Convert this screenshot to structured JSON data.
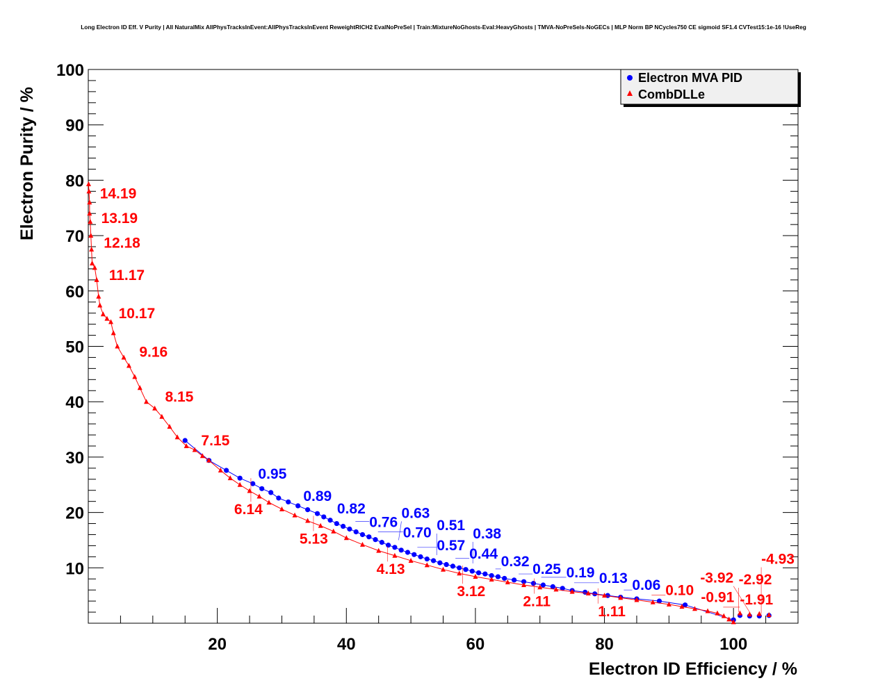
{
  "chart_data": {
    "type": "line",
    "title": "Long Electron ID Eff. V Purity | All NaturalMix AllPhysTracksInEvent:AllPhysTracksInEvent ReweightRICH2 EvalNoPreSel | Train:MixtureNoGhosts-Eval:HeavyGhosts | TMVA-NoPreSels-NoGECs | MLP Norm BP NCycles750 CE sigmoid SF1.4 CVTest15:1e-16 !UseReg",
    "xlabel": "Electron ID Efficiency / %",
    "ylabel": "Electron Purity / %",
    "xlim": [
      0,
      110
    ],
    "ylim": [
      0,
      100
    ],
    "xticks": [
      20,
      40,
      60,
      80,
      100
    ],
    "yticks": [
      10,
      20,
      30,
      40,
      50,
      60,
      70,
      80,
      90,
      100
    ],
    "grid": true,
    "legend_position": "top-right",
    "series": [
      {
        "name": "Electron MVA PID",
        "color": "#0000ff",
        "marker": "circle",
        "points": [
          [
            15,
            33
          ],
          [
            18.7,
            29.4
          ],
          [
            21.4,
            27.6
          ],
          [
            23.5,
            26.2
          ],
          [
            25.5,
            25.2
          ],
          [
            26.9,
            24.3
          ],
          [
            28.3,
            23.6
          ],
          [
            29.5,
            22.6
          ],
          [
            31,
            21.9
          ],
          [
            32.5,
            21.2
          ],
          [
            34,
            20.5
          ],
          [
            35.5,
            19.8
          ],
          [
            36.5,
            19.2
          ],
          [
            37.5,
            18.6
          ],
          [
            38.5,
            18.0
          ],
          [
            39.5,
            17.5
          ],
          [
            40.5,
            17.0
          ],
          [
            41.5,
            16.5
          ],
          [
            42.5,
            16.0
          ],
          [
            43.5,
            15.6
          ],
          [
            44.5,
            15.1
          ],
          [
            45.5,
            14.6
          ],
          [
            46.5,
            14.1
          ],
          [
            47.5,
            13.7
          ],
          [
            48.5,
            13.2
          ],
          [
            49.5,
            12.8
          ],
          [
            50.5,
            12.4
          ],
          [
            51.5,
            12.0
          ],
          [
            52.5,
            11.6
          ],
          [
            53.5,
            11.3
          ],
          [
            54.5,
            10.9
          ],
          [
            55.5,
            10.6
          ],
          [
            56.5,
            10.3
          ],
          [
            57.5,
            10.0
          ],
          [
            58.5,
            9.7
          ],
          [
            59.5,
            9.4
          ],
          [
            60.5,
            9.1
          ],
          [
            61.5,
            8.9
          ],
          [
            62.5,
            8.6
          ],
          [
            63.5,
            8.4
          ],
          [
            64.5,
            8.1
          ],
          [
            66,
            7.8
          ],
          [
            67.5,
            7.5
          ],
          [
            69,
            7.2
          ],
          [
            70.5,
            6.9
          ],
          [
            72,
            6.6
          ],
          [
            73.5,
            6.3
          ],
          [
            75,
            5.9
          ],
          [
            77,
            5.6
          ],
          [
            78.5,
            5.3
          ],
          [
            80.5,
            5.0
          ],
          [
            82.5,
            4.7
          ],
          [
            85,
            4.4
          ],
          [
            88.5,
            4.0
          ],
          [
            92.5,
            3.3
          ],
          [
            100,
            0.6
          ],
          [
            101,
            1.4
          ],
          [
            102.5,
            1.3
          ],
          [
            104,
            1.3
          ],
          [
            105.5,
            1.4
          ]
        ],
        "labels": [
          [
            "0.95",
            25.9,
            27.1
          ],
          [
            "0.89",
            32.9,
            23.1
          ],
          [
            "0.82",
            37.7,
            20.3
          ],
          [
            "0.76",
            41.4,
            18.4
          ],
          [
            "0.70",
            44.9,
            16.5
          ],
          [
            "0.63",
            48.1,
            15.0
          ],
          [
            "0.57",
            51.0,
            13.7
          ],
          [
            "0.51",
            54.0,
            12.3
          ],
          [
            "0.44",
            56.9,
            11.7
          ],
          [
            "0.38",
            59.6,
            10.8
          ],
          [
            "0.32",
            63.1,
            9.8
          ],
          [
            "0.25",
            66.7,
            8.9
          ],
          [
            "0.19",
            70.2,
            8.3
          ],
          [
            "0.13",
            75.3,
            7.3
          ],
          [
            "0.06",
            83.0,
            6.0
          ]
        ]
      },
      {
        "name": "CombDLLe",
        "color": "#ff0000",
        "marker": "triangle",
        "points": [
          [
            0.05,
            79.3
          ],
          [
            0.1,
            78
          ],
          [
            0.2,
            76
          ],
          [
            0.2,
            74
          ],
          [
            0.3,
            72.5
          ],
          [
            0.4,
            70
          ],
          [
            0.5,
            67.5
          ],
          [
            0.6,
            65
          ],
          [
            1.0,
            64.2
          ],
          [
            1.3,
            62
          ],
          [
            1.6,
            59
          ],
          [
            1.8,
            57.4
          ],
          [
            2.3,
            55.8
          ],
          [
            2.9,
            55
          ],
          [
            3.5,
            54.4
          ],
          [
            3.9,
            52.4
          ],
          [
            4.5,
            50
          ],
          [
            5.5,
            48
          ],
          [
            6.3,
            46.5
          ],
          [
            7.2,
            44.5
          ],
          [
            8.0,
            42.5
          ],
          [
            9.0,
            40
          ],
          [
            10.3,
            38.8
          ],
          [
            11.4,
            37.3
          ],
          [
            12.6,
            35.5
          ],
          [
            13.8,
            33.6
          ],
          [
            15.2,
            32
          ],
          [
            16.5,
            31.3
          ],
          [
            17.7,
            30.2
          ],
          [
            18.7,
            29.4
          ],
          [
            20.5,
            27.6
          ],
          [
            22.0,
            26.2
          ],
          [
            23.5,
            25.0
          ],
          [
            25.0,
            23.9
          ],
          [
            26.5,
            22.9
          ],
          [
            28.0,
            21.8
          ],
          [
            30.0,
            20.6
          ],
          [
            32.0,
            19.5
          ],
          [
            34.0,
            18.5
          ],
          [
            36.0,
            17.6
          ],
          [
            38.0,
            16.6
          ],
          [
            40.0,
            15.4
          ],
          [
            42.5,
            14.2
          ],
          [
            45.0,
            13.1
          ],
          [
            47.5,
            12.2
          ],
          [
            50.0,
            11.3
          ],
          [
            52.5,
            10.5
          ],
          [
            55.0,
            9.7
          ],
          [
            57.5,
            9.0
          ],
          [
            60.0,
            8.4
          ],
          [
            62.5,
            7.9
          ],
          [
            65.0,
            7.4
          ],
          [
            67.5,
            6.9
          ],
          [
            70.0,
            6.5
          ],
          [
            72.5,
            6.1
          ],
          [
            75.0,
            5.7
          ],
          [
            77.5,
            5.4
          ],
          [
            80.0,
            5.0
          ],
          [
            82.5,
            4.6
          ],
          [
            85.0,
            4.2
          ],
          [
            87.5,
            3.8
          ],
          [
            90.0,
            3.4
          ],
          [
            92.0,
            3.0
          ],
          [
            94.0,
            2.6
          ],
          [
            96.0,
            2.2
          ],
          [
            97.5,
            1.8
          ],
          [
            98.5,
            1.3
          ],
          [
            99.3,
            0.7
          ],
          [
            100,
            0.2
          ],
          [
            101,
            1.8
          ],
          [
            102.5,
            1.6
          ],
          [
            104,
            1.7
          ],
          [
            105.5,
            1.5
          ]
        ],
        "labels": [
          [
            "14.19",
            1.8,
            77.7
          ],
          [
            "13.19",
            2.0,
            73.3
          ],
          [
            "12.18",
            2.4,
            68.8
          ],
          [
            "11.17",
            3.2,
            63.0
          ],
          [
            "10.17",
            4.7,
            56.1
          ],
          [
            "9.16",
            7.9,
            49.1
          ],
          [
            "8.15",
            11.9,
            41.0
          ],
          [
            "7.15",
            17.5,
            33.1
          ],
          [
            "6.14",
            25.2,
            26.2
          ],
          [
            "5.13",
            34.9,
            19.4
          ],
          [
            "4.13",
            46.4,
            13.9
          ],
          [
            "3.12",
            58.0,
            10.4
          ],
          [
            "2.11",
            69.1,
            8.1
          ],
          [
            "1.11",
            79.0,
            6.3
          ],
          [
            "0.10",
            87.3,
            5.1
          ],
          [
            "-0.91",
            94.1,
            3.8
          ],
          [
            "-1.91",
            98.4,
            2.9
          ],
          [
            "-2.92",
            100.8,
            2.0
          ],
          [
            "-3.92",
            102.6,
            1.8
          ],
          [
            "-4.93",
            104.3,
            1.7
          ]
        ]
      }
    ]
  }
}
